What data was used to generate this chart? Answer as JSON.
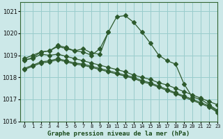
{
  "title": "Graphe pression niveau de la mer (hPa)",
  "background_color": "#cce8e8",
  "grid_color": "#99cccc",
  "line_color": "#2d5a2d",
  "xlim": [
    -0.5,
    23
  ],
  "ylim": [
    1016,
    1021.4
  ],
  "yticks": [
    1016,
    1017,
    1018,
    1019,
    1020,
    1021
  ],
  "xticks": [
    0,
    1,
    2,
    3,
    4,
    5,
    6,
    7,
    8,
    9,
    10,
    11,
    12,
    13,
    14,
    15,
    16,
    17,
    18,
    19,
    20,
    21,
    22,
    23
  ],
  "series_peak": {
    "x": [
      0,
      1,
      2,
      3,
      4,
      5,
      6,
      7,
      8,
      9,
      10,
      11,
      12,
      13,
      14,
      15,
      16,
      17,
      18,
      19,
      20,
      21,
      22,
      23
    ],
    "y": [
      1018.75,
      1018.9,
      1019.15,
      1019.2,
      1019.45,
      1019.35,
      1019.2,
      1019.3,
      1019.1,
      1019.05,
      1020.05,
      1020.75,
      1020.8,
      1020.5,
      1020.05,
      1019.55,
      1019.0,
      1018.75,
      1018.6,
      1017.7,
      1017.1,
      1017.0,
      1016.75,
      1016.5
    ]
  },
  "series_wavy": {
    "x": [
      0,
      1,
      2,
      3,
      4,
      5,
      6,
      7,
      8,
      9,
      10,
      11,
      12,
      13,
      14,
      15,
      16,
      17,
      18,
      19,
      20,
      21,
      22,
      23
    ],
    "y": [
      1018.85,
      1019.0,
      1019.15,
      1019.2,
      1019.4,
      1019.3,
      1019.2,
      1019.15,
      1019.0,
      1019.3,
      1020.05,
      null,
      null,
      null,
      null,
      null,
      null,
      null,
      null,
      null,
      null,
      null,
      null,
      null
    ]
  },
  "series_linear1": {
    "x": [
      0,
      1,
      2,
      3,
      4,
      5,
      6,
      7,
      8,
      9,
      10,
      11,
      12,
      13,
      14,
      15,
      16,
      17,
      18,
      19,
      20,
      21,
      22,
      23
    ],
    "y": [
      1018.8,
      1018.85,
      1019.05,
      1019.0,
      1019.05,
      1018.95,
      1018.85,
      1018.75,
      1018.65,
      1018.55,
      1018.45,
      1018.35,
      1018.25,
      1018.1,
      1018.0,
      1017.9,
      1017.75,
      1017.65,
      1017.5,
      1017.35,
      1017.2,
      1017.05,
      1016.9,
      1016.75
    ]
  },
  "series_linear2": {
    "x": [
      0,
      1,
      2,
      3,
      4,
      5,
      6,
      7,
      8,
      9,
      10,
      11,
      12,
      13,
      14,
      15,
      16,
      17,
      18,
      19,
      20,
      21,
      22,
      23
    ],
    "y": [
      1018.4,
      1018.55,
      1018.7,
      1018.75,
      1018.85,
      1018.75,
      1018.65,
      1018.6,
      1018.5,
      1018.4,
      1018.3,
      1018.2,
      1018.1,
      1018.0,
      1017.85,
      1017.75,
      1017.6,
      1017.45,
      1017.3,
      1017.15,
      1017.0,
      1016.85,
      1016.7,
      1016.45
    ]
  },
  "series_linear3": {
    "x": [
      0,
      1,
      2,
      3,
      4,
      5,
      6,
      7,
      8,
      9,
      10,
      11,
      12,
      13,
      14,
      15,
      16,
      17,
      18,
      19,
      20,
      21,
      22,
      23
    ],
    "y": [
      1018.35,
      1018.5,
      1018.65,
      1018.7,
      1018.8,
      1018.7,
      1018.6,
      1018.55,
      1018.45,
      1018.35,
      1018.25,
      1018.15,
      1018.05,
      1017.95,
      1017.8,
      1017.7,
      1017.55,
      1017.4,
      1017.25,
      1017.1,
      1016.95,
      1016.8,
      1016.65,
      1016.4
    ]
  }
}
